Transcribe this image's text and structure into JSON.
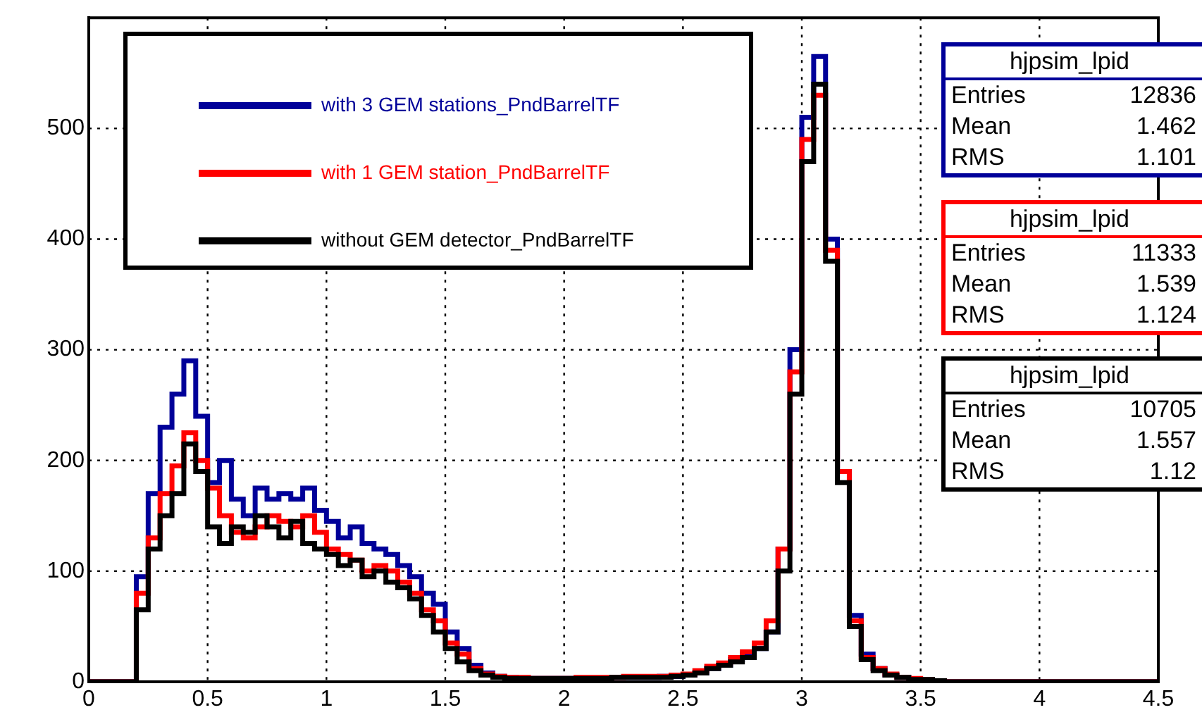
{
  "chart_data": {
    "type": "histogram",
    "bins": [
      0,
      0.05,
      0.1,
      0.15,
      0.2,
      0.25,
      0.3,
      0.35,
      0.4,
      0.45,
      0.5,
      0.55,
      0.6,
      0.65,
      0.7,
      0.75,
      0.8,
      0.85,
      0.9,
      0.95,
      1,
      1.05,
      1.1,
      1.15,
      1.2,
      1.25,
      1.3,
      1.35,
      1.4,
      1.45,
      1.5,
      1.55,
      1.6,
      1.65,
      1.7,
      1.75,
      1.8,
      1.85,
      1.9,
      1.95,
      2,
      2.05,
      2.1,
      2.15,
      2.2,
      2.25,
      2.3,
      2.35,
      2.4,
      2.45,
      2.5,
      2.55,
      2.6,
      2.65,
      2.7,
      2.75,
      2.8,
      2.85,
      2.9,
      2.95,
      3,
      3.05,
      3.1,
      3.15,
      3.2,
      3.25,
      3.3,
      3.35,
      3.4,
      3.45,
      3.5,
      3.55,
      3.6,
      3.65,
      3.7,
      3.75,
      3.8,
      3.85,
      3.9,
      3.95,
      4,
      4.05,
      4.1,
      4.15,
      4.2,
      4.25,
      4.3,
      4.35,
      4.4,
      4.45,
      4.5
    ],
    "series": [
      {
        "name": "with 3 GEM stations_PndBarrelTF",
        "color": "#000099",
        "values": [
          0,
          0,
          0,
          0,
          95,
          170,
          230,
          260,
          290,
          240,
          180,
          200,
          165,
          150,
          175,
          165,
          170,
          165,
          175,
          155,
          145,
          130,
          140,
          125,
          120,
          115,
          105,
          95,
          80,
          70,
          45,
          30,
          15,
          8,
          5,
          4,
          3,
          3,
          3,
          3,
          3,
          3,
          3,
          3,
          4,
          4,
          4,
          4,
          5,
          5,
          6,
          8,
          12,
          15,
          20,
          25,
          30,
          45,
          120,
          300,
          510,
          565,
          400,
          190,
          60,
          25,
          12,
          6,
          4,
          2,
          2,
          1,
          0,
          0,
          0,
          0,
          0,
          0,
          0,
          0,
          0,
          0,
          0,
          0,
          0,
          0,
          0,
          0,
          0,
          0
        ]
      },
      {
        "name": "with 1 GEM station_PndBarrelTF",
        "color": "#ff0000",
        "values": [
          0,
          0,
          0,
          0,
          80,
          130,
          170,
          195,
          225,
          200,
          175,
          150,
          135,
          130,
          140,
          150,
          145,
          140,
          150,
          135,
          120,
          115,
          110,
          100,
          105,
          100,
          90,
          80,
          65,
          55,
          35,
          25,
          12,
          7,
          5,
          4,
          4,
          3,
          3,
          3,
          3,
          4,
          4,
          4,
          4,
          5,
          5,
          5,
          5,
          6,
          7,
          10,
          14,
          17,
          22,
          27,
          35,
          55,
          120,
          280,
          490,
          530,
          390,
          190,
          55,
          22,
          12,
          7,
          4,
          3,
          2,
          1,
          0,
          0,
          0,
          0,
          0,
          0,
          0,
          0,
          0,
          0,
          0,
          0,
          0,
          0,
          0,
          0,
          0,
          0
        ]
      },
      {
        "name": "without GEM detector_PndBarrelTF",
        "color": "#000000",
        "values": [
          0,
          0,
          0,
          0,
          65,
          120,
          150,
          170,
          215,
          190,
          140,
          125,
          140,
          135,
          150,
          140,
          130,
          145,
          125,
          120,
          115,
          105,
          110,
          95,
          100,
          90,
          85,
          75,
          60,
          45,
          30,
          18,
          10,
          6,
          4,
          3,
          3,
          3,
          3,
          3,
          3,
          3,
          3,
          3,
          4,
          4,
          4,
          4,
          4,
          5,
          6,
          8,
          12,
          15,
          18,
          22,
          30,
          45,
          100,
          260,
          470,
          540,
          380,
          180,
          50,
          20,
          10,
          6,
          4,
          2,
          2,
          1,
          0,
          0,
          0,
          0,
          0,
          0,
          0,
          0,
          0,
          0,
          0,
          0,
          0,
          0,
          0,
          0,
          0,
          0
        ]
      }
    ],
    "xlim": [
      0,
      4.5
    ],
    "xticks": [
      0,
      0.5,
      1,
      1.5,
      2,
      2.5,
      3,
      3.5,
      4,
      4.5
    ],
    "ylim": [
      0,
      600
    ],
    "yticks": [
      0,
      100,
      200,
      300,
      400,
      500
    ],
    "grid": true,
    "legend": "top left",
    "annotations": [
      "hjpsim_lpid",
      "Entries 12836",
      "Mean 1.462",
      "RMS 1.101",
      "hjpsim_lpid",
      "Entries 11333",
      "Mean 1.539",
      "RMS 1.124",
      "hjpsim_lpid",
      "Entries 10705",
      "Mean 1.557",
      "RMS 1.12"
    ]
  }
}
